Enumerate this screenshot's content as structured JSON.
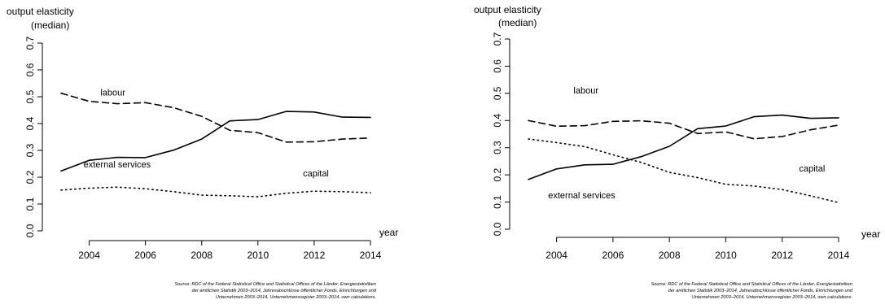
{
  "chart_data": [
    {
      "type": "line",
      "ylabel": "output elasticity",
      "ylabel_sub": "(median)",
      "xlabel": "year",
      "x": [
        2003,
        2004,
        2005,
        2006,
        2007,
        2008,
        2009,
        2010,
        2011,
        2012,
        2013,
        2014
      ],
      "xticks": [
        "2004",
        "2006",
        "2008",
        "2010",
        "2012",
        "2014"
      ],
      "yticks": [
        "0.0",
        "0.1",
        "0.2",
        "0.3",
        "0.4",
        "0.5",
        "0.6",
        "0.7"
      ],
      "ylim": [
        0,
        0.7
      ],
      "xlim": [
        2003,
        2014
      ],
      "grid": false,
      "series": [
        {
          "name": "labour",
          "style": "dashed",
          "values": [
            0.513,
            0.483,
            0.474,
            0.478,
            0.459,
            0.427,
            0.375,
            0.366,
            0.331,
            0.332,
            0.342,
            0.346
          ]
        },
        {
          "name": "external services",
          "style": "solid",
          "values": [
            0.223,
            0.263,
            0.274,
            0.273,
            0.301,
            0.342,
            0.41,
            0.415,
            0.445,
            0.443,
            0.424,
            0.423
          ]
        },
        {
          "name": "capital",
          "style": "dotted",
          "values": [
            0.152,
            0.159,
            0.163,
            0.157,
            0.146,
            0.133,
            0.131,
            0.127,
            0.14,
            0.148,
            0.146,
            0.142
          ]
        }
      ],
      "labels": [
        {
          "text": "labour",
          "x": 2004.4,
          "y": 0.505
        },
        {
          "text": "external services",
          "x": 2003.8,
          "y": 0.237
        },
        {
          "text": "capital",
          "x": 2011.6,
          "y": 0.203
        }
      ],
      "source": [
        "Source:  RDC of the Federal Statistical Office and Statistical Offices of the Länder, Energiestatistiken",
        "der amtlichen Statistik 2003–2014, Jahresabschlüsse öffentlicher Fonds, Einrichtungen und",
        "Unternehmen 2003–2014, Unternehmensregister 2003–2014, own calculations."
      ]
    },
    {
      "type": "line",
      "ylabel": "output elasticity",
      "ylabel_sub": "(median)",
      "xlabel": "year",
      "x": [
        2003,
        2004,
        2005,
        2006,
        2007,
        2008,
        2009,
        2010,
        2011,
        2012,
        2013,
        2014
      ],
      "xticks": [
        "2004",
        "2006",
        "2008",
        "2010",
        "2012",
        "2014"
      ],
      "yticks": [
        "0.0",
        "0.1",
        "0.2",
        "0.3",
        "0.4",
        "0.5",
        "0.6",
        "0.7"
      ],
      "ylim": [
        0,
        0.7
      ],
      "xlim": [
        2003,
        2014
      ],
      "grid": false,
      "series": [
        {
          "name": "labour",
          "style": "dashed",
          "values": [
            0.4,
            0.379,
            0.381,
            0.397,
            0.399,
            0.39,
            0.352,
            0.358,
            0.333,
            0.341,
            0.366,
            0.383
          ]
        },
        {
          "name": "external services",
          "style": "solid",
          "values": [
            0.183,
            0.222,
            0.237,
            0.239,
            0.267,
            0.305,
            0.37,
            0.38,
            0.414,
            0.42,
            0.408,
            0.41
          ]
        },
        {
          "name": "capital",
          "style": "dotted",
          "values": [
            0.332,
            0.319,
            0.304,
            0.274,
            0.246,
            0.209,
            0.19,
            0.165,
            0.159,
            0.146,
            0.123,
            0.098
          ]
        }
      ],
      "labels": [
        {
          "text": "labour",
          "x": 2004.6,
          "y": 0.5
        },
        {
          "text": "external services",
          "x": 2003.7,
          "y": 0.113
        },
        {
          "text": "capital",
          "x": 2012.6,
          "y": 0.212
        }
      ],
      "source": [
        "Source:  RDC of the Federal Statistical Office and Statistical Offices of the Länder, Energiestatistiken",
        "der amtlichen Statistik 2003–2014, Jahresabschlüsse öffentlicher Fonds, Einrichtungen und",
        "Unternehmen 2003–2014, Unternehmensregister 2003–2014, own calculations."
      ]
    }
  ]
}
